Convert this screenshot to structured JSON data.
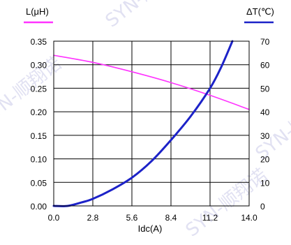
{
  "chart_data": {
    "type": "line",
    "title": "",
    "xlabel": "Idc(A)",
    "ylabel": "L(μH)",
    "y2label": "ΔT(℃)",
    "xlim": [
      0.0,
      14.0
    ],
    "ylim": [
      0.0,
      0.35
    ],
    "y2lim": [
      0,
      70
    ],
    "x_ticks": [
      "0.0",
      "2.8",
      "5.6",
      "8.4",
      "11.2",
      "14.0"
    ],
    "y_ticks": [
      "0.00",
      "0.05",
      "0.10",
      "0.15",
      "0.20",
      "0.25",
      "0.30",
      "0.35"
    ],
    "y2_ticks": [
      "0",
      "10",
      "20",
      "30",
      "40",
      "50",
      "60",
      "70"
    ],
    "grid": true,
    "series": [
      {
        "name": "L(μH)",
        "axis": "left",
        "color": "#ff33ff",
        "x": [
          0.0,
          2.8,
          5.6,
          8.4,
          11.2,
          14.0
        ],
        "y": [
          0.32,
          0.305,
          0.285,
          0.262,
          0.235,
          0.205
        ]
      },
      {
        "name": "ΔT(℃)",
        "axis": "right",
        "color": "#1c22c8",
        "x": [
          0.0,
          1.0,
          2.0,
          2.8,
          4.2,
          5.6,
          7.0,
          8.4,
          9.8,
          11.2,
          12.0,
          12.8
        ],
        "y": [
          0,
          0,
          1.5,
          3,
          7,
          12,
          19,
          28,
          38,
          50,
          59,
          70
        ]
      }
    ],
    "watermark": "SYN-顺翔诺"
  }
}
